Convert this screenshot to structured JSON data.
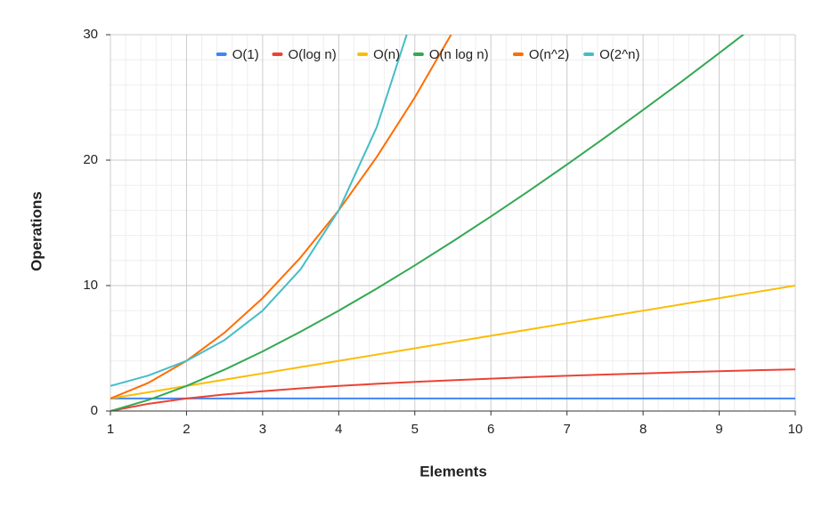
{
  "chart_data": {
    "type": "line",
    "x_label": "Elements",
    "y_label": "Operations",
    "x": [
      1,
      1.5,
      2,
      2.5,
      3,
      3.5,
      4,
      4.5,
      5,
      5.5,
      6,
      6.5,
      7,
      7.5,
      8,
      8.5,
      9,
      9.5,
      10
    ],
    "series": [
      {
        "name": "O(1)",
        "color": "#4285f4",
        "values": [
          1,
          1,
          1,
          1,
          1,
          1,
          1,
          1,
          1,
          1,
          1,
          1,
          1,
          1,
          1,
          1,
          1,
          1,
          1
        ]
      },
      {
        "name": "O(log n)",
        "color": "#ea4335",
        "values": [
          0,
          0.58,
          1,
          1.32,
          1.58,
          1.81,
          2,
          2.17,
          2.32,
          2.46,
          2.58,
          2.7,
          2.81,
          2.91,
          3,
          3.09,
          3.17,
          3.25,
          3.32
        ]
      },
      {
        "name": "O(n)",
        "color": "#fbbc04",
        "values": [
          1,
          1.5,
          2,
          2.5,
          3,
          3.5,
          4,
          4.5,
          5,
          5.5,
          6,
          6.5,
          7,
          7.5,
          8,
          8.5,
          9,
          9.5,
          10
        ]
      },
      {
        "name": "O(n log n)",
        "color": "#34a853",
        "values": [
          0,
          0.88,
          2,
          3.3,
          4.75,
          6.33,
          8,
          9.76,
          11.61,
          13.53,
          15.51,
          17.55,
          19.65,
          21.8,
          24,
          26.24,
          28.53,
          30.86,
          null
        ]
      },
      {
        "name": "O(n^2)",
        "color": "#ff6d01",
        "values": [
          1,
          2.25,
          4,
          6.25,
          9,
          12.25,
          16,
          20.25,
          25,
          30.25,
          null,
          null,
          null,
          null,
          null,
          null,
          null,
          null,
          null
        ]
      },
      {
        "name": "O(2^n)",
        "color": "#46bdc6",
        "values": [
          2,
          2.83,
          4,
          5.66,
          8,
          11.31,
          16,
          22.63,
          32,
          null,
          null,
          null,
          null,
          null,
          null,
          null,
          null,
          null,
          null
        ]
      }
    ],
    "xlim": [
      1,
      10
    ],
    "xticks": [
      1,
      2,
      3,
      4,
      5,
      6,
      7,
      8,
      9,
      10
    ],
    "ylim": [
      0,
      30
    ],
    "yticks": [
      0,
      10,
      20,
      30
    ],
    "grid": true,
    "legend": "top"
  }
}
